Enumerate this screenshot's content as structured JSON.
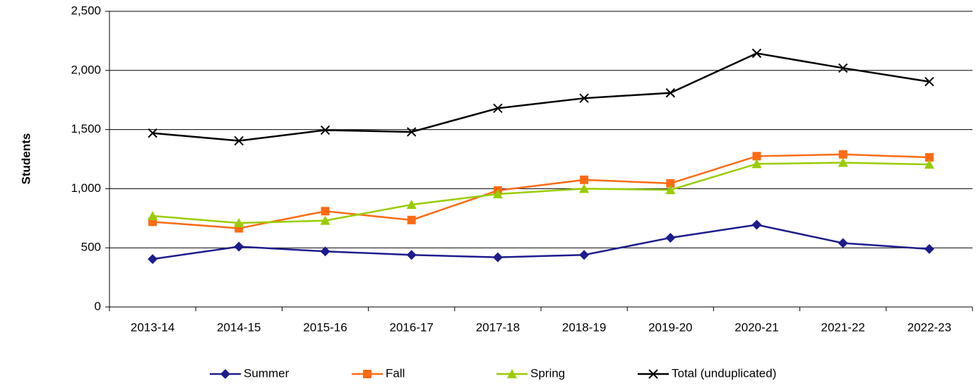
{
  "chart_data": {
    "type": "line",
    "y_label": "Students",
    "categories": [
      "2013-14",
      "2014-15",
      "2015-16",
      "2016-17",
      "2017-18",
      "2018-19",
      "2019-20",
      "2020-21",
      "2021-22",
      "2022-23"
    ],
    "series": [
      {
        "name": "Summer",
        "color": "#1c1c8c",
        "marker": "diamond",
        "values": [
          405,
          510,
          470,
          440,
          420,
          440,
          585,
          695,
          540,
          490
        ]
      },
      {
        "name": "Fall",
        "color": "#ff6a13",
        "marker": "square",
        "values": [
          720,
          665,
          810,
          735,
          985,
          1075,
          1045,
          1275,
          1290,
          1265
        ]
      },
      {
        "name": "Spring",
        "color": "#99cc00",
        "marker": "triangle",
        "values": [
          770,
          710,
          730,
          865,
          955,
          1000,
          990,
          1210,
          1220,
          1205
        ]
      },
      {
        "name": "Total (unduplicated)",
        "color": "#000000",
        "marker": "x",
        "values": [
          1470,
          1405,
          1495,
          1480,
          1680,
          1765,
          1810,
          2145,
          2020,
          1905
        ]
      }
    ],
    "ylim": [
      0,
      2500
    ],
    "yticks": [
      0,
      500,
      {
        "value": 1000,
        "label": "1,000"
      },
      {
        "value": 1500,
        "label": "1,500"
      },
      {
        "value": 2000,
        "label": "2,000"
      },
      {
        "value": 2500,
        "label": "2,500"
      }
    ],
    "grid": true,
    "legend": "bottom"
  }
}
